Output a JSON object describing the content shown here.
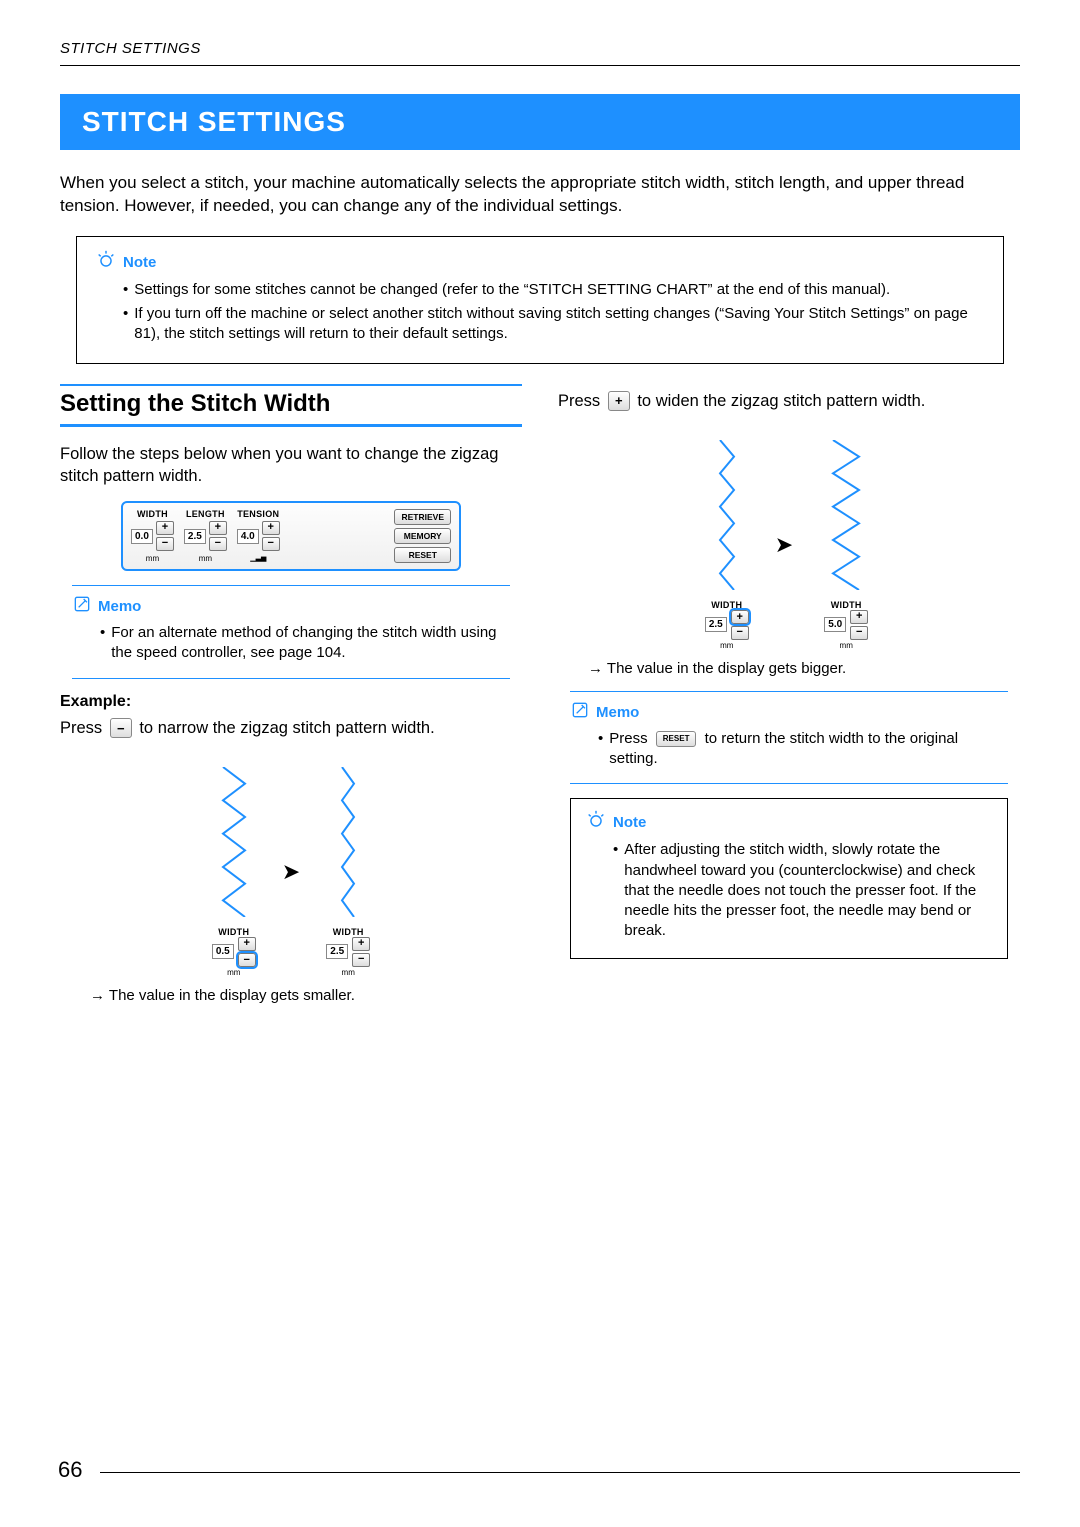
{
  "header_label": "STITCH SETTINGS",
  "title": "STITCH SETTINGS",
  "intro": "When you select a stitch, your machine automatically selects the appropriate stitch width, stitch length, and upper thread tension. However, if needed, you can change any of the individual settings.",
  "note_top": {
    "title": "Note",
    "bullets": [
      "Settings for some stitches cannot be changed (refer to the “STITCH SETTING CHART” at the end of this manual).",
      "If you turn off the machine or select another stitch without saving stitch setting changes (“Saving Your Stitch Settings” on page 81), the stitch settings will return to their default settings."
    ]
  },
  "section_heading": "Setting the Stitch Width",
  "section_intro": "Follow the steps below when you want to change the zigzag stitch pattern width.",
  "panel": {
    "width": {
      "label": "WIDTH",
      "value": "0.0",
      "unit": "mm"
    },
    "length": {
      "label": "LENGTH",
      "value": "2.5",
      "unit": "mm"
    },
    "tension": {
      "label": "TENSION",
      "value": "4.0"
    },
    "buttons": {
      "retrieve": "RETRIEVE",
      "memory": "MEMORY",
      "reset": "RESET"
    },
    "highlight_color": "#1e90ff"
  },
  "memo1": {
    "title": "Memo",
    "text": "For an alternate method of changing the stitch width using the speed controller, see page 104."
  },
  "example_label": "Example:",
  "narrow": {
    "text_before": "Press ",
    "btn": "−",
    "text_after": " to narrow the zigzag stitch pattern width.",
    "before_width": 22,
    "after_width": 12,
    "left_val": "0.5",
    "right_val": "2.5",
    "result": "The value in the display gets smaller.",
    "highlight": "minus"
  },
  "widen": {
    "text_before": "Press ",
    "btn": "+",
    "text_after": " to widen the zigzag stitch pattern width.",
    "before_width": 14,
    "after_width": 26,
    "left_val": "2.5",
    "right_val": "5.0",
    "result": "The value in the display gets bigger.",
    "highlight": "plus"
  },
  "memo2": {
    "title": "Memo",
    "text_before": "Press ",
    "reset_label": "RESET",
    "text_after": " to return the stitch width to the original setting."
  },
  "note_bottom": {
    "title": "Note",
    "text": "After adjusting the stitch width, slowly rotate the handwheel toward you (counterclockwise) and check that the needle does not touch the presser foot. If the needle hits the presser foot, the needle may bend or break."
  },
  "zigzag": {
    "color": "#1e90ff",
    "segments": 9,
    "height": 150,
    "stroke": 2
  },
  "page_number": "66",
  "colors": {
    "accent": "#1e90ff"
  }
}
